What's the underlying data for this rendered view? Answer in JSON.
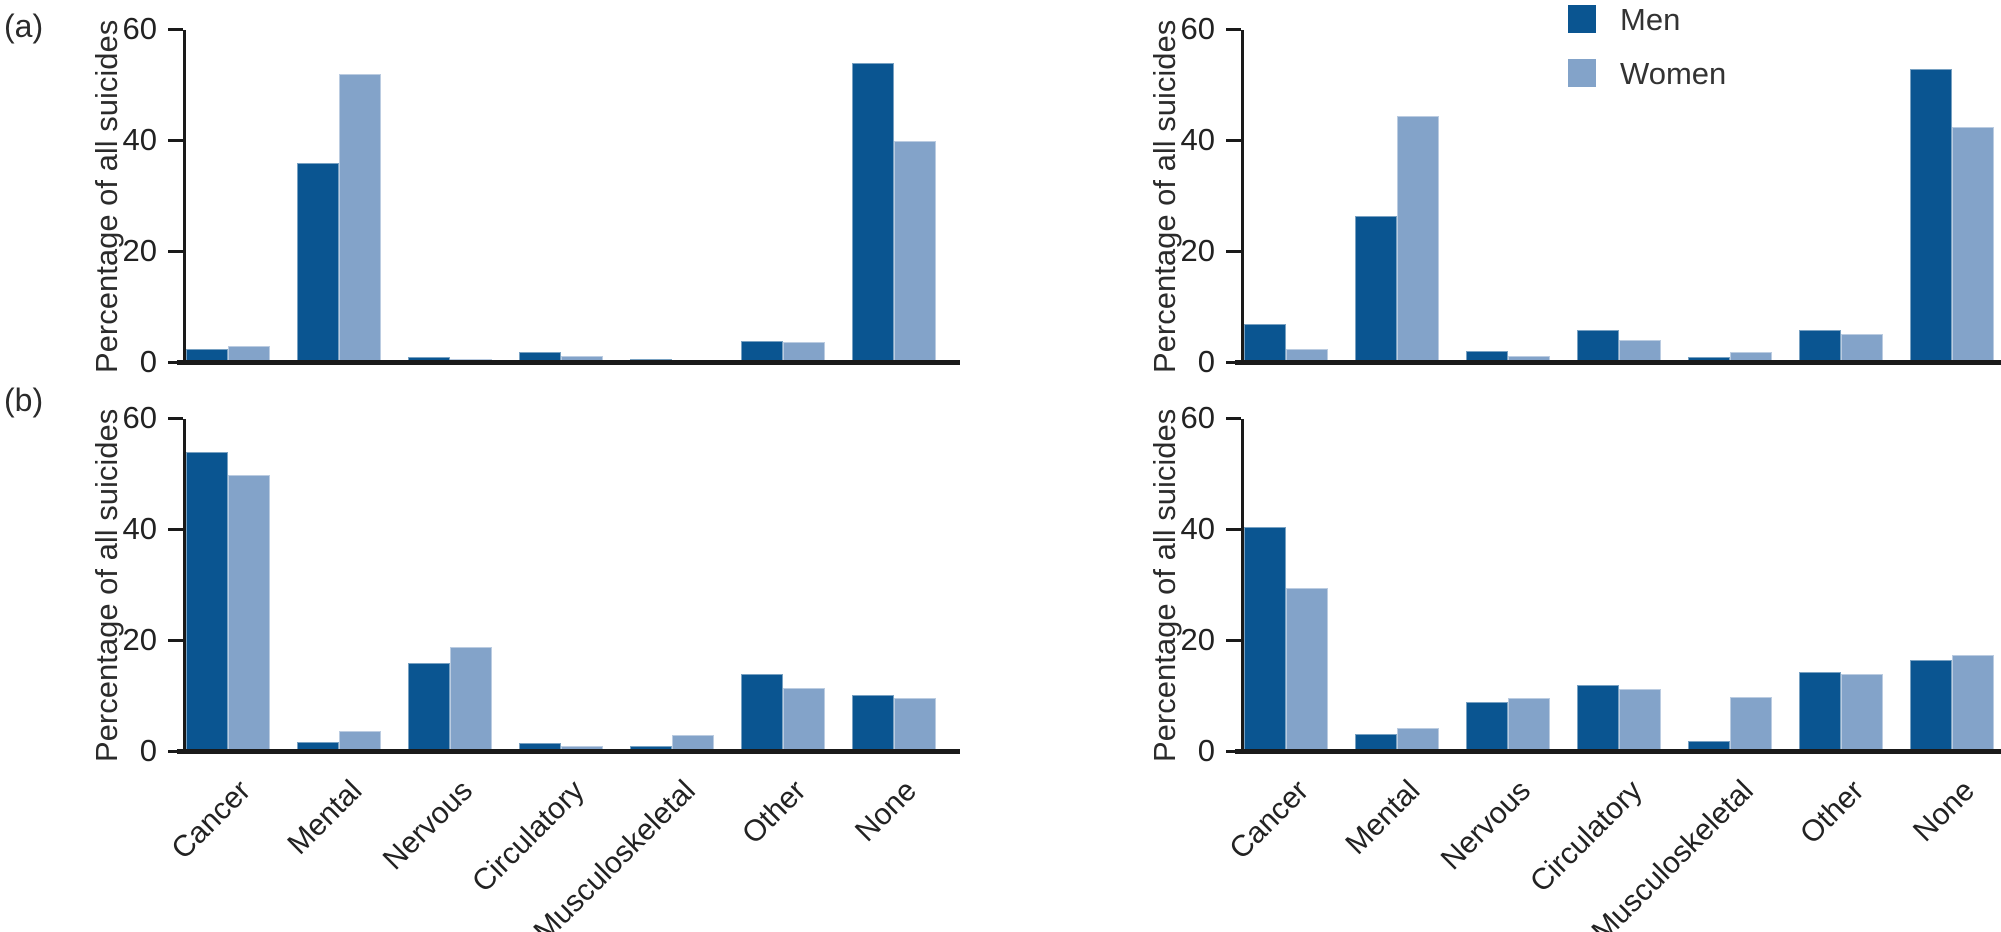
{
  "figure": {
    "panel_labels": [
      "(a)",
      "(b)"
    ]
  },
  "legend": {
    "items": [
      {
        "label": "Men",
        "color": "#0A5591"
      },
      {
        "label": "Women",
        "color": "#83A3C9"
      }
    ]
  },
  "colors": {
    "men": "#0A5591",
    "women": "#83A3C9",
    "axis": "#1a1a1a"
  },
  "chart_data": [
    {
      "type": "bar",
      "id": "panel-a-left",
      "title": "",
      "xlabel": "",
      "ylabel": "Percentage of all suicides",
      "ylim": [
        0,
        60
      ],
      "yticks": [
        0,
        20,
        40,
        60
      ],
      "grid": false,
      "legend_position": "top-right-of-figure",
      "categories": [
        "Cancer",
        "Mental",
        "Nervous",
        "Circulatory",
        "Musculoskeletal",
        "Other",
        "None"
      ],
      "show_category_labels": false,
      "series": [
        {
          "name": "Men",
          "color": "#0A5591",
          "values": [
            2.5,
            36,
            1,
            2,
            0.7,
            4,
            54
          ]
        },
        {
          "name": "Women",
          "color": "#83A3C9",
          "values": [
            3,
            52,
            0.8,
            1.2,
            0.6,
            3.7,
            40
          ]
        }
      ]
    },
    {
      "type": "bar",
      "id": "panel-a-right",
      "title": "",
      "xlabel": "",
      "ylabel": "Percentage of all suicides",
      "ylim": [
        0,
        60
      ],
      "yticks": [
        0,
        20,
        40,
        60
      ],
      "grid": false,
      "legend_position": "top-right-of-figure",
      "categories": [
        "Cancer",
        "Mental",
        "Nervous",
        "Circulatory",
        "Musculoskeletal",
        "Other",
        "None"
      ],
      "show_category_labels": false,
      "series": [
        {
          "name": "Men",
          "color": "#0A5591",
          "values": [
            7,
            26.5,
            2.2,
            6,
            1,
            6,
            53
          ]
        },
        {
          "name": "Women",
          "color": "#83A3C9",
          "values": [
            2.5,
            44.5,
            1.3,
            4.2,
            2,
            5.3,
            42.5
          ]
        }
      ]
    },
    {
      "type": "bar",
      "id": "panel-b-left",
      "title": "",
      "xlabel": "",
      "ylabel": "Percentage of all suicides",
      "ylim": [
        0,
        60
      ],
      "yticks": [
        0,
        20,
        40,
        60
      ],
      "grid": false,
      "legend_position": "top-right-of-figure",
      "categories": [
        "Cancer",
        "Mental",
        "Nervous",
        "Circulatory",
        "Musculoskeletal",
        "Other",
        "None"
      ],
      "show_category_labels": true,
      "series": [
        {
          "name": "Men",
          "color": "#0A5591",
          "values": [
            54,
            1.8,
            16,
            1.7,
            1,
            14,
            10.2
          ]
        },
        {
          "name": "Women",
          "color": "#83A3C9",
          "values": [
            50,
            3.8,
            19,
            1.1,
            3,
            11.5,
            9.7
          ]
        }
      ]
    },
    {
      "type": "bar",
      "id": "panel-b-right",
      "title": "",
      "xlabel": "",
      "ylabel": "Percentage of all suicides",
      "ylim": [
        0,
        60
      ],
      "yticks": [
        0,
        20,
        40,
        60
      ],
      "grid": false,
      "legend_position": "top-right-of-figure",
      "categories": [
        "Cancer",
        "Mental",
        "Nervous",
        "Circulatory",
        "Musculoskeletal",
        "Other",
        "None"
      ],
      "show_category_labels": true,
      "series": [
        {
          "name": "Men",
          "color": "#0A5591",
          "values": [
            40.5,
            3.3,
            9,
            12,
            2,
            14.5,
            16.5
          ]
        },
        {
          "name": "Women",
          "color": "#83A3C9",
          "values": [
            29.5,
            4.3,
            9.8,
            11.3,
            10,
            14,
            17.5
          ]
        }
      ]
    }
  ]
}
